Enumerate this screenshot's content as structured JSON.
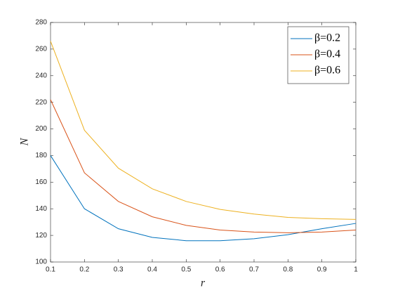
{
  "chart_data": {
    "type": "line",
    "xlabel": "r",
    "ylabel": "N",
    "x": [
      0.1,
      0.2,
      0.3,
      0.4,
      0.5,
      0.6,
      0.7,
      0.8,
      0.9,
      1
    ],
    "series": [
      {
        "name": "β=0.2",
        "color": "#0072bd",
        "values": [
          180,
          140,
          125,
          118.5,
          116,
          116,
          117.5,
          120.5,
          125,
          129
        ]
      },
      {
        "name": "β=0.4",
        "color": "#d95319",
        "values": [
          222,
          167,
          145.5,
          134,
          127.5,
          124,
          122.5,
          122,
          122.5,
          124
        ]
      },
      {
        "name": "β=0.6",
        "color": "#edb120",
        "values": [
          266,
          199,
          170.5,
          155,
          145.5,
          139.5,
          136,
          133.5,
          132.5,
          132
        ]
      }
    ],
    "xlim": [
      0.1,
      1
    ],
    "xticks": [
      0.1,
      0.2,
      0.3,
      0.4,
      0.5,
      0.6,
      0.7,
      0.8,
      0.9,
      1
    ],
    "ylim": [
      100,
      280
    ],
    "yticks": [
      100,
      120,
      140,
      160,
      180,
      200,
      220,
      240,
      260,
      280
    ],
    "legend": "northeast"
  }
}
